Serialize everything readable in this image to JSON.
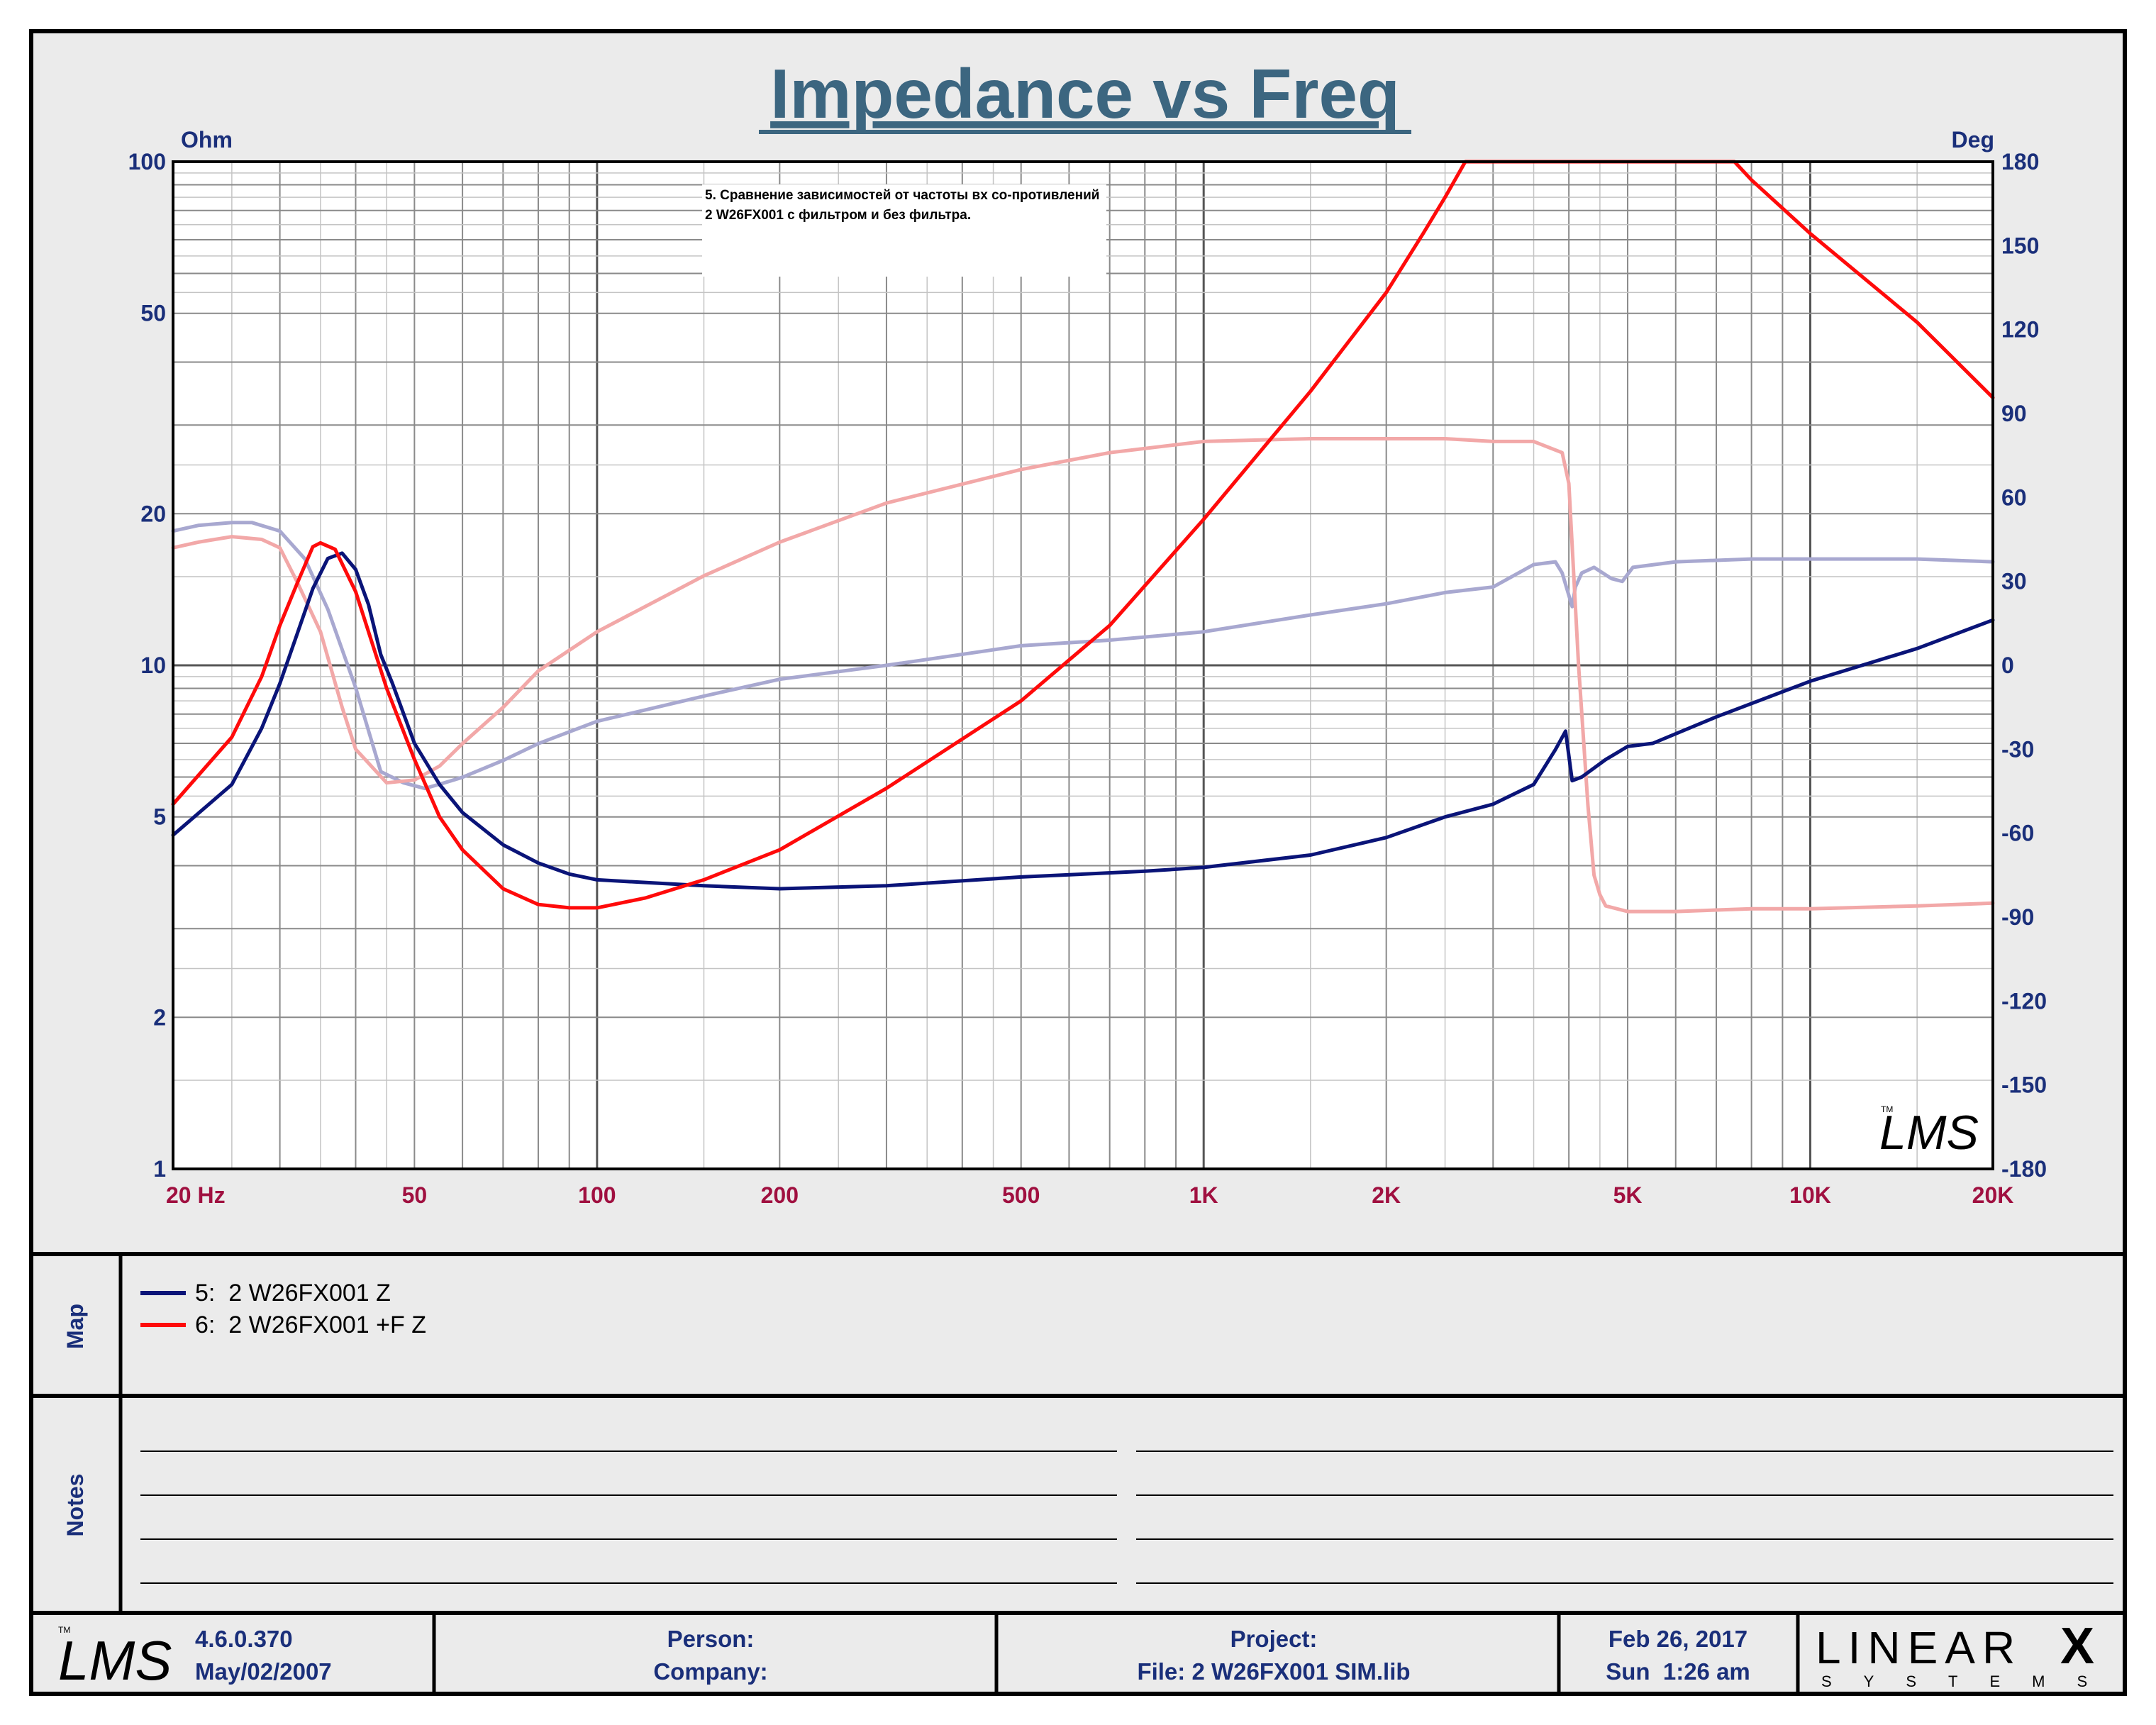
{
  "title": "Impedance vs Freq",
  "annotation": "5. Сравнение зависимостей от частоты вх со-противлений 2 W26FX001 с фильтром и без фильтра.",
  "footer": {
    "version": "4.6.0.370",
    "build_date": "May/02/2007",
    "person_label": "Person:",
    "company_label": "Company:",
    "project_label": "Project:",
    "file_label": "File: 2 W26FX001 SIM.lib",
    "date": "Feb 26, 2017",
    "time": "Sun  1:26 am",
    "brand_top": "LINEAR",
    "brand_x": "X",
    "brand_bottom": "SYSTEMS"
  },
  "side_labels": {
    "map": "Map",
    "notes": "Notes"
  },
  "colors": {
    "frame": "#000000",
    "panel": "#ebebeb",
    "title": "#3c6680",
    "axis_text": "#1a2f7a",
    "freq_text": "#a01040",
    "series_5_z": "#0a1478",
    "series_6_z": "#ff0a0a",
    "series_5_phase": "#a8a8d0",
    "series_6_phase": "#f2a8a8"
  },
  "chart_data": {
    "type": "line",
    "title": "Impedance vs Freq",
    "x_scale": "log",
    "xlim": [
      20,
      20000
    ],
    "ylabel": "Ohm",
    "y_scale": "log",
    "ylim": [
      1,
      100
    ],
    "y2label": "Deg",
    "y2lim": [
      -180,
      180
    ],
    "grid": true,
    "x_ticks": [
      {
        "value": 20,
        "label": "20  Hz"
      },
      {
        "value": 50,
        "label": "50"
      },
      {
        "value": 100,
        "label": "100"
      },
      {
        "value": 200,
        "label": "200"
      },
      {
        "value": 500,
        "label": "500"
      },
      {
        "value": 1000,
        "label": "1K"
      },
      {
        "value": 2000,
        "label": "2K"
      },
      {
        "value": 5000,
        "label": "5K"
      },
      {
        "value": 10000,
        "label": "10K"
      },
      {
        "value": 20000,
        "label": "20K"
      }
    ],
    "y_ticks": [
      {
        "value": 100,
        "label": "100"
      },
      {
        "value": 50,
        "label": "50"
      },
      {
        "value": 20,
        "label": "20"
      },
      {
        "value": 10,
        "label": "10"
      },
      {
        "value": 5,
        "label": "5"
      },
      {
        "value": 2,
        "label": "2"
      },
      {
        "value": 1,
        "label": "1"
      }
    ],
    "y2_ticks": [
      180,
      150,
      120,
      90,
      60,
      30,
      0,
      -30,
      -60,
      -90,
      -120,
      -150,
      -180
    ],
    "series": [
      {
        "name": "5:  2 W26FX001 Z",
        "axis": "y",
        "color": "#0a1478",
        "legend": true,
        "x": [
          20,
          25,
          28,
          30,
          32,
          34,
          36,
          38,
          40,
          42,
          44,
          46,
          50,
          55,
          60,
          70,
          80,
          90,
          100,
          150,
          200,
          300,
          500,
          800,
          1000,
          1500,
          2000,
          2500,
          3000,
          3500,
          3800,
          3950,
          4050,
          4200,
          4600,
          5000,
          5500,
          7000,
          10000,
          15000,
          20000
        ],
        "values": [
          4.6,
          5.8,
          7.5,
          9.2,
          11.5,
          14.2,
          16.3,
          16.7,
          15.5,
          13.2,
          10.5,
          9.2,
          7.0,
          5.8,
          5.1,
          4.4,
          4.05,
          3.85,
          3.75,
          3.65,
          3.6,
          3.65,
          3.8,
          3.9,
          3.97,
          4.2,
          4.55,
          5.0,
          5.3,
          5.8,
          6.8,
          7.4,
          5.9,
          6.0,
          6.5,
          6.9,
          7.0,
          7.9,
          9.3,
          10.8,
          12.3
        ]
      },
      {
        "name": "6:  2 W26FX001 +F Z",
        "axis": "y",
        "color": "#ff0a0a",
        "legend": true,
        "x": [
          20,
          25,
          28,
          30,
          32,
          34,
          35,
          37,
          40,
          45,
          50,
          55,
          60,
          70,
          80,
          90,
          100,
          120,
          150,
          200,
          300,
          500,
          700,
          1000,
          1500,
          2000,
          2300,
          2500,
          2700,
          3000,
          5000,
          7000,
          7500,
          8000,
          10000,
          15000,
          20000
        ],
        "values": [
          5.3,
          7.2,
          9.5,
          12.0,
          14.5,
          17.2,
          17.5,
          17.0,
          14.0,
          9.0,
          6.5,
          5.0,
          4.3,
          3.6,
          3.35,
          3.3,
          3.3,
          3.45,
          3.75,
          4.3,
          5.7,
          8.5,
          12.0,
          19.5,
          35.0,
          55.0,
          72.0,
          85.0,
          100,
          100,
          100,
          100,
          100,
          92,
          72,
          48,
          34
        ]
      },
      {
        "name": "5:  2 W26FX001 Z phase",
        "axis": "y2",
        "color": "#a8a8d0",
        "legend": false,
        "x": [
          20,
          22,
          25,
          27,
          30,
          33,
          36,
          40,
          44,
          48,
          52,
          56,
          60,
          70,
          80,
          100,
          150,
          200,
          300,
          500,
          700,
          1000,
          1500,
          2000,
          2500,
          3000,
          3500,
          3800,
          3900,
          4000,
          4050,
          4100,
          4200,
          4400,
          4700,
          4900,
          5100,
          6000,
          8000,
          10000,
          15000,
          20000
        ],
        "values": [
          48,
          50,
          51,
          51,
          48,
          38,
          20,
          -8,
          -38,
          -42,
          -44,
          -42,
          -40,
          -34,
          -28,
          -20,
          -11,
          -5,
          0,
          7,
          9,
          12,
          18,
          22,
          26,
          28,
          36,
          37,
          33,
          25,
          21,
          28,
          33,
          35,
          31,
          30,
          35,
          37,
          38,
          38,
          38,
          37
        ]
      },
      {
        "name": "6:  2 W26FX001 +F Z phase",
        "axis": "y2",
        "color": "#f2a8a8",
        "legend": false,
        "x": [
          20,
          22,
          25,
          28,
          30,
          32,
          35,
          38,
          40,
          45,
          50,
          55,
          60,
          70,
          80,
          100,
          150,
          200,
          300,
          500,
          700,
          1000,
          1500,
          2000,
          2500,
          3000,
          3500,
          3900,
          4000,
          4150,
          4300,
          4400,
          4500,
          4600,
          5000,
          6000,
          8000,
          10000,
          15000,
          20000
        ],
        "values": [
          42,
          44,
          46,
          45,
          42,
          30,
          12,
          -15,
          -30,
          -42,
          -41,
          -36,
          -28,
          -15,
          -2,
          12,
          32,
          44,
          58,
          70,
          76,
          80,
          81,
          81,
          81,
          80,
          80,
          76,
          65,
          0,
          -50,
          -75,
          -82,
          -86,
          -88,
          -88,
          -87,
          -87,
          -86,
          -85
        ]
      }
    ]
  }
}
